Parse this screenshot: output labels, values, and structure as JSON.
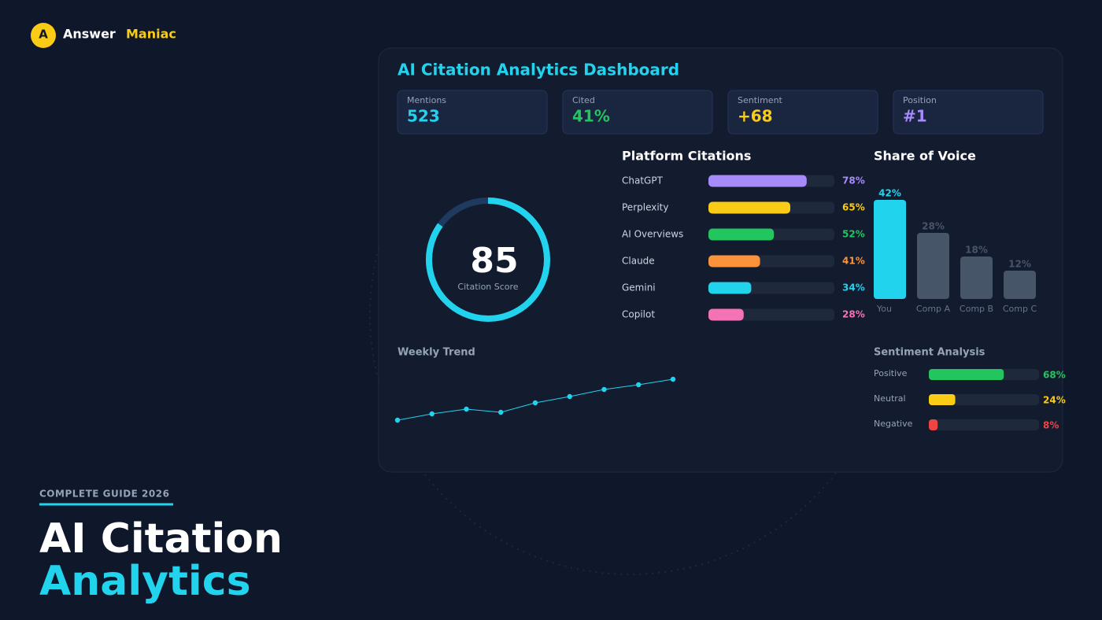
{
  "brand": {
    "logo": "A",
    "name": "Answer",
    "accent": "Maniac"
  },
  "hero": {
    "kicker": "COMPLETE GUIDE 2026",
    "title": "AI Citation",
    "title_accent": "Analytics"
  },
  "dashboard": {
    "title": "AI Citation Analytics Dashboard",
    "stats": [
      {
        "label": "Mentions",
        "value": "523",
        "color": "#22d3ee"
      },
      {
        "label": "Cited",
        "value": "41%",
        "color": "#22c55e"
      },
      {
        "label": "Sentiment",
        "value": "+68",
        "color": "#facc15"
      },
      {
        "label": "Position",
        "value": "#1",
        "color": "#a78bfa"
      }
    ]
  },
  "chart_data": [
    {
      "type": "gauge",
      "value": 85,
      "label": "Citation Score",
      "lim": [
        0,
        100
      ],
      "color": "#22d3ee"
    },
    {
      "type": "hbar",
      "title": "Platform Citations",
      "categories": [
        "ChatGPT",
        "Perplexity",
        "AI Overviews",
        "Claude",
        "Gemini",
        "Copilot"
      ],
      "values": [
        78,
        65,
        52,
        41,
        34,
        28
      ],
      "value_labels": [
        "78%",
        "65%",
        "52%",
        "41%",
        "34%",
        "28%"
      ],
      "colors": [
        "#a78bfa",
        "#facc15",
        "#22c55e",
        "#fb923c",
        "#22d3ee",
        "#f472b6"
      ],
      "xlim": [
        0,
        100
      ]
    },
    {
      "type": "bar",
      "title": "Share of Voice",
      "categories": [
        "You",
        "Comp A",
        "Comp B",
        "Comp C"
      ],
      "values": [
        42,
        28,
        18,
        12
      ],
      "value_labels": [
        "42%",
        "28%",
        "18%",
        "12%"
      ],
      "colors": [
        "#22d3ee",
        "#475569",
        "#475569",
        "#475569"
      ],
      "ylim": [
        0,
        42
      ]
    },
    {
      "type": "line",
      "title": "Weekly Trend",
      "values": [
        0,
        8,
        14,
        10,
        22,
        30,
        39,
        45,
        52
      ],
      "color": "#22d3ee",
      "ylim": [
        0,
        52
      ]
    },
    {
      "type": "sentiment",
      "title": "Sentiment Analysis",
      "categories": [
        "Positive",
        "Neutral",
        "Negative"
      ],
      "values": [
        68,
        24,
        8
      ],
      "value_labels": [
        "68%",
        "24%",
        "8%"
      ],
      "colors": [
        "#22c55e",
        "#facc15",
        "#ef4444"
      ],
      "xlim": [
        0,
        100
      ]
    }
  ]
}
